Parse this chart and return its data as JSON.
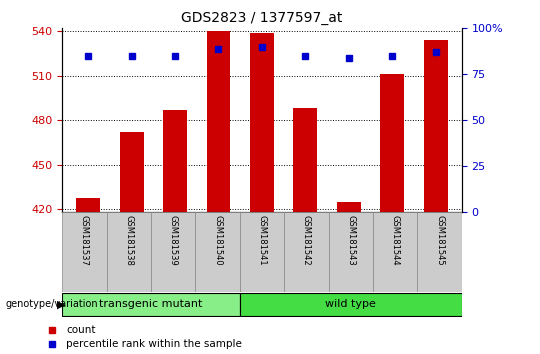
{
  "title": "GDS2823 / 1377597_at",
  "samples": [
    "GSM181537",
    "GSM181538",
    "GSM181539",
    "GSM181540",
    "GSM181541",
    "GSM181542",
    "GSM181543",
    "GSM181544",
    "GSM181545"
  ],
  "count_values": [
    428,
    472,
    487,
    540,
    539,
    488,
    425,
    511,
    534
  ],
  "percentile_values": [
    85,
    85,
    85,
    89,
    90,
    85,
    84,
    85,
    87
  ],
  "ylim_left": [
    418,
    542
  ],
  "yticks_left": [
    420,
    450,
    480,
    510,
    540
  ],
  "ylim_right": [
    0,
    100
  ],
  "yticks_right": [
    0,
    25,
    50,
    75,
    100
  ],
  "bar_color": "#cc0000",
  "percentile_color": "#0000cc",
  "group1_label": "transgenic mutant",
  "group1_count": 4,
  "group2_label": "wild type",
  "group2_count": 5,
  "group1_color": "#88ee88",
  "group2_color": "#44dd44",
  "xlabel_label": "genotype/variation",
  "legend_count_label": "count",
  "legend_percentile_label": "percentile rank within the sample",
  "tick_label_color_left": "#cc0000",
  "tick_label_color_right": "#0000cc",
  "x_positions": [
    1,
    2,
    3,
    4,
    5,
    6,
    7,
    8,
    9
  ]
}
